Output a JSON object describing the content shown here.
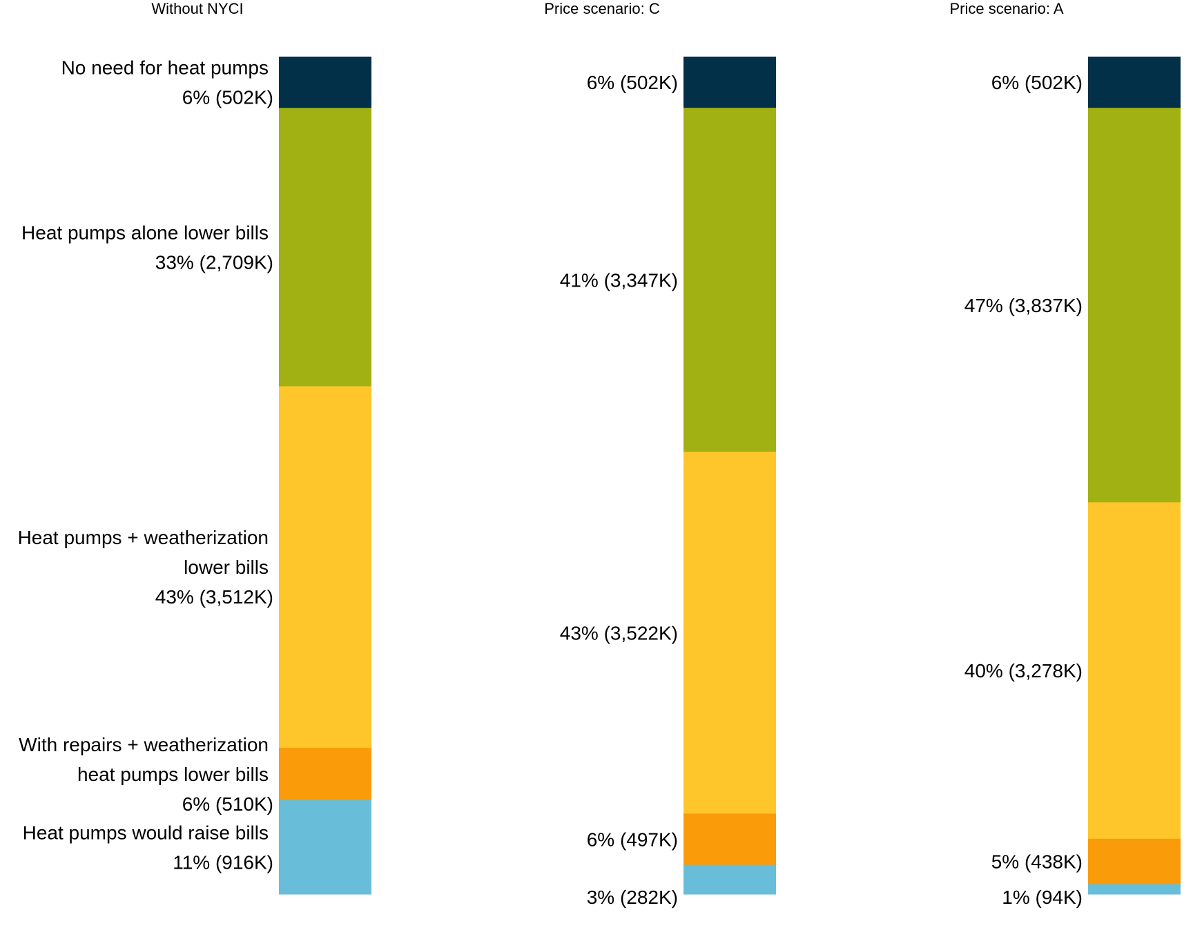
{
  "chart_data": {
    "type": "bar",
    "stacked": true,
    "orientation": "vertical",
    "title": "",
    "xlabel": "",
    "ylabel": "",
    "ylim": [
      0,
      100
    ],
    "grid": false,
    "legend": "none",
    "categories": [
      {
        "id": "no-need",
        "lines": [
          "No need for heat pumps"
        ],
        "color": "#033049"
      },
      {
        "id": "hp-alone",
        "lines": [
          "Heat pumps alone lower bills"
        ],
        "color": "#a1b113"
      },
      {
        "id": "hp-weatherization",
        "lines": [
          "Heat pumps + weatherization",
          "lower bills"
        ],
        "color": "#ffc62b"
      },
      {
        "id": "repairs-weatherization",
        "lines": [
          "With repairs + weatherization",
          "heat pumps lower bills"
        ],
        "color": "#fa9b0a"
      },
      {
        "id": "raise-bills",
        "lines": [
          "Heat pumps would raise bills"
        ],
        "color": "#68bed8"
      }
    ],
    "panels": [
      {
        "title": "Without NYCI",
        "show_category_labels": true,
        "segments": [
          {
            "category": "no-need",
            "percent": 6.1,
            "label": "6% (502K)"
          },
          {
            "category": "hp-alone",
            "percent": 33.1,
            "label": "33% (2,709K)"
          },
          {
            "category": "hp-weatherization",
            "percent": 43.0,
            "label": "43% (3,512K)"
          },
          {
            "category": "repairs-weatherization",
            "percent": 6.2,
            "label": "6% (510K)"
          },
          {
            "category": "raise-bills",
            "percent": 11.2,
            "label": "11% (916K)"
          }
        ]
      },
      {
        "title": "Price scenario: C",
        "show_category_labels": false,
        "segments": [
          {
            "category": "no-need",
            "percent": 6.1,
            "label": "6% (502K)"
          },
          {
            "category": "hp-alone",
            "percent": 41.0,
            "label": "41% (3,347K)"
          },
          {
            "category": "hp-weatherization",
            "percent": 43.1,
            "label": "43% (3,522K)"
          },
          {
            "category": "repairs-weatherization",
            "percent": 6.1,
            "label": "6% (497K)"
          },
          {
            "category": "raise-bills",
            "percent": 3.5,
            "label": "3% (282K)"
          }
        ]
      },
      {
        "title": "Price scenario: A",
        "show_category_labels": false,
        "segments": [
          {
            "category": "no-need",
            "percent": 6.1,
            "label": "6% (502K)"
          },
          {
            "category": "hp-alone",
            "percent": 47.0,
            "label": "47% (3,837K)"
          },
          {
            "category": "hp-weatherization",
            "percent": 40.1,
            "label": "40% (3,278K)"
          },
          {
            "category": "repairs-weatherization",
            "percent": 5.4,
            "label": "5% (438K)"
          },
          {
            "category": "raise-bills",
            "percent": 1.2,
            "label": "1% (94K)"
          }
        ]
      }
    ]
  }
}
